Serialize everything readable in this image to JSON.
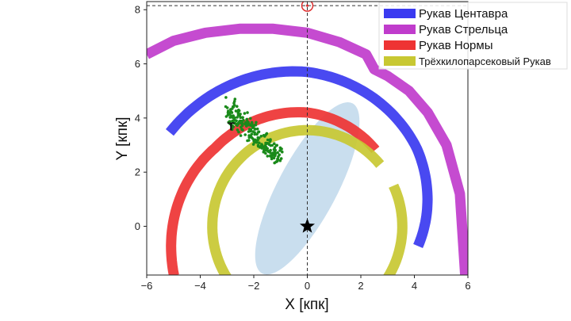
{
  "chart_data": {
    "type": "line",
    "xlabel": "X [кпк]",
    "ylabel": "Y [кпк]",
    "xlim": [
      -6,
      6
    ],
    "ylim": [
      -1.8,
      8.3
    ],
    "x_ticks": [
      "−6",
      "−4",
      "−2",
      "0",
      "2",
      "4",
      "6"
    ],
    "y_ticks": [
      "0",
      "2",
      "4",
      "6",
      "8"
    ],
    "grid": false,
    "legend_position": "top-right",
    "series": [
      {
        "name": "Рукав Центавра",
        "color": "#3a3af0",
        "shape": "arc",
        "center": [
          0,
          0
        ],
        "radius": [
          6.2,
          5.7,
          5.0,
          4.2
        ],
        "angle_deg": [
          146,
          90,
          35,
          -10
        ]
      },
      {
        "name": "Рукав Стрельца",
        "color": "#c03ccc",
        "shape": "polyline",
        "x": [
          -6.0,
          -5.0,
          -3.8,
          -2.5,
          -1.3,
          0.0,
          1.2,
          2.2,
          2.5,
          3.0,
          3.8,
          4.5,
          5.2,
          5.7,
          5.9
        ],
        "y": [
          6.35,
          6.85,
          7.15,
          7.3,
          7.3,
          7.15,
          6.8,
          6.35,
          5.8,
          5.55,
          5.0,
          4.2,
          3.0,
          1.2,
          -1.8
        ]
      },
      {
        "name": "Рукав Нормы",
        "color": "#ee3333",
        "shape": "arc",
        "center": [
          0,
          0
        ],
        "radius": [
          5.3,
          4.5,
          4.2,
          3.8
        ],
        "angle_deg": [
          200,
          140,
          90,
          48
        ]
      },
      {
        "name": "Трёхкилопарсековый Рукав",
        "color": "#c8c832",
        "shape": "circle",
        "center": [
          0,
          0
        ],
        "radius": 3.55,
        "gap_deg": [
          25,
          40
        ]
      }
    ],
    "annotations": [
      {
        "type": "star",
        "x": 0,
        "y": 0,
        "color": "#000000"
      },
      {
        "type": "circle-marker",
        "x": 0,
        "y": 8.15,
        "color": "#e03030"
      },
      {
        "type": "text",
        "text": "T",
        "x": -2.85,
        "y": 3.55
      },
      {
        "type": "cluster",
        "color": "#1a8a1a",
        "x_range": [
          -3.2,
          -1.0
        ],
        "y_range": [
          2.4,
          4.6
        ]
      },
      {
        "type": "ellipse",
        "color": "#bcd6ea",
        "center": [
          0,
          1.4
        ],
        "rx": 3.6,
        "ry": 1.1,
        "angle_deg": 62
      }
    ],
    "reference_lines": [
      {
        "orientation": "vertical",
        "x": 0,
        "style": "dashed"
      },
      {
        "orientation": "horizontal",
        "y": 8.15,
        "style": "dashed"
      }
    ]
  }
}
